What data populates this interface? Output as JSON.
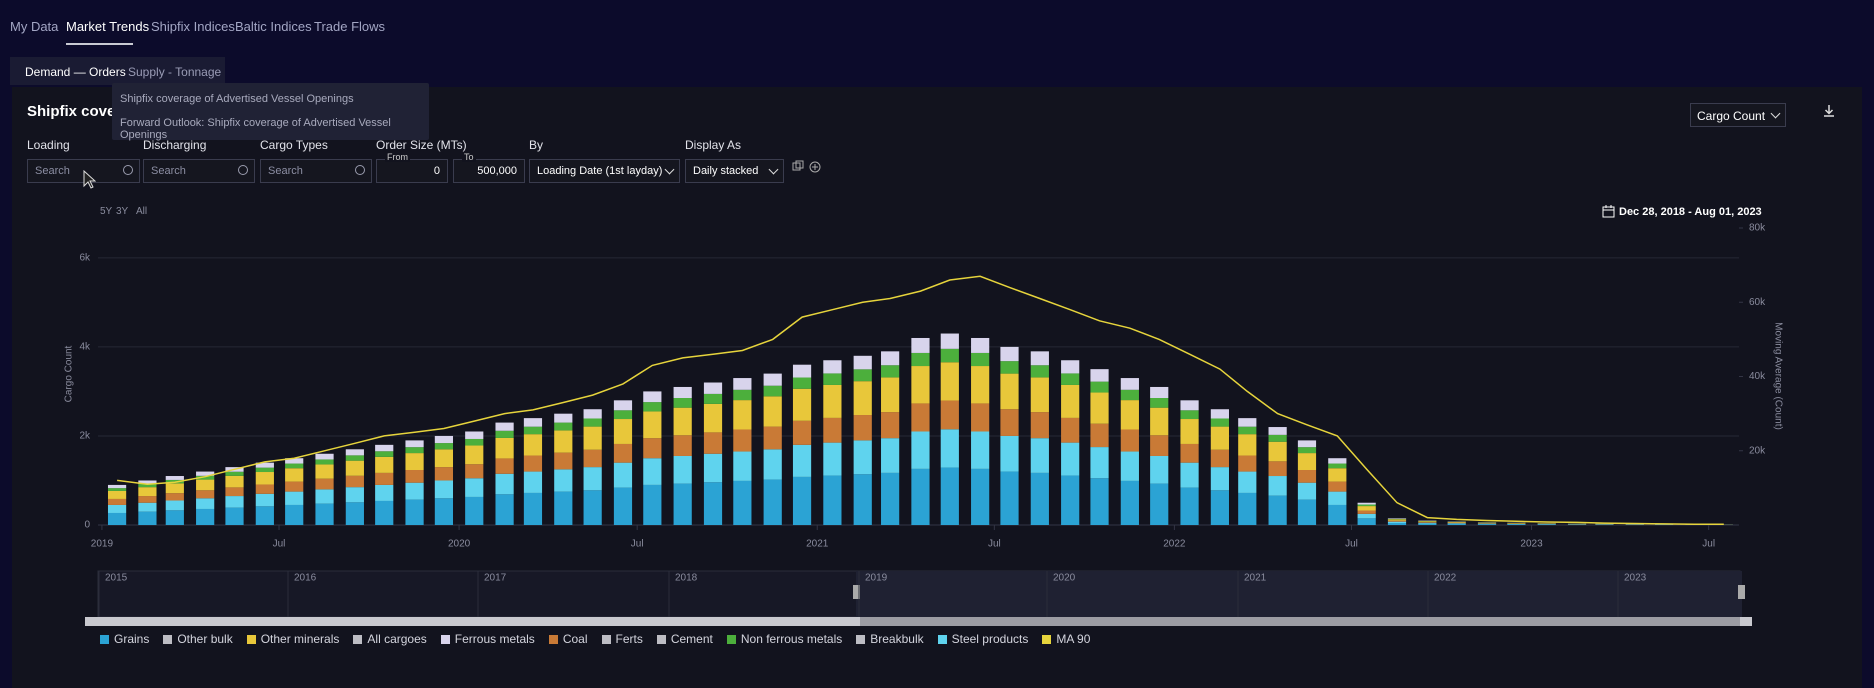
{
  "nav": [
    "My Data",
    "Market Trends",
    "Shipfix Indices",
    "Baltic Indices",
    "Trade Flows"
  ],
  "subtabs": [
    "Demand — Orders",
    "Supply - Tonnage"
  ],
  "menu": [
    "Shipfix coverage of Advertised Vessel Openings",
    "Forward Outlook: Shipfix coverage of Advertised Vessel Openings"
  ],
  "panel": {
    "title": "Shipfix cover",
    "metric": "Cargo Count"
  },
  "filters": {
    "loading": {
      "label": "Loading",
      "placeholder": "Search"
    },
    "discharging": {
      "label": "Discharging",
      "placeholder": "Search"
    },
    "cargo_types": {
      "label": "Cargo Types",
      "placeholder": "Search"
    },
    "order_size": {
      "label": "Order Size (MTs)",
      "from_label": "From",
      "from": "0",
      "to_label": "To",
      "to": "500,000"
    },
    "by": {
      "label": "By",
      "value": "Loading Date (1st layday)"
    },
    "display_as": {
      "label": "Display As",
      "value": "Daily stacked"
    }
  },
  "zoom": [
    "5Y",
    "3Y",
    "All"
  ],
  "date_range": "Dec 28, 2018 - Aug 01, 2023",
  "navigator_years": [
    "2015",
    "2016",
    "2017",
    "2018",
    "2019",
    "2020",
    "2021",
    "2022",
    "2023"
  ],
  "chart_data": {
    "type": "bar",
    "y_label": "Cargo Count",
    "y2_label": "Moving Average (Count)",
    "grid": true,
    "x": [
      "2019-01",
      "2019-02",
      "2019-03",
      "2019-04",
      "2019-05",
      "2019-06",
      "2019-07",
      "2019-08",
      "2019-09",
      "2019-10",
      "2019-11",
      "2019-12",
      "2020-01",
      "2020-02",
      "2020-03",
      "2020-04",
      "2020-05",
      "2020-06",
      "2020-07",
      "2020-08",
      "2020-09",
      "2020-10",
      "2020-11",
      "2020-12",
      "2021-01",
      "2021-02",
      "2021-03",
      "2021-04",
      "2021-05",
      "2021-06",
      "2021-07",
      "2021-08",
      "2021-09",
      "2021-10",
      "2021-11",
      "2021-12",
      "2022-01",
      "2022-02",
      "2022-03",
      "2022-04",
      "2022-05",
      "2022-06",
      "2022-07",
      "2022-08",
      "2022-09",
      "2022-10",
      "2022-11",
      "2022-12",
      "2023-01",
      "2023-02",
      "2023-03",
      "2023-04",
      "2023-05",
      "2023-06",
      "2023-07"
    ],
    "xlim": [
      "2018-12-28",
      "2023-08-01"
    ],
    "xticks": [
      {
        "value": "2019-01-01",
        "label": "2019"
      },
      {
        "value": "2019-07-01",
        "label": "Jul"
      },
      {
        "value": "2020-01-01",
        "label": "2020"
      },
      {
        "value": "2020-07-01",
        "label": "Jul"
      },
      {
        "value": "2021-01-01",
        "label": "2021"
      },
      {
        "value": "2021-07-01",
        "label": "Jul"
      },
      {
        "value": "2022-01-01",
        "label": "2022"
      },
      {
        "value": "2022-07-01",
        "label": "Jul"
      },
      {
        "value": "2023-01-01",
        "label": "2023"
      },
      {
        "value": "2023-07-01",
        "label": "Jul"
      }
    ],
    "ylim": [
      0,
      6670
    ],
    "yticks": [
      0,
      {
        "value": 2000,
        "label": "2k"
      },
      {
        "value": 4000,
        "label": "4k"
      },
      {
        "value": 6000,
        "label": "6k"
      }
    ],
    "y2lim": [
      0,
      80000
    ],
    "y2ticks": [
      {
        "value": 20000,
        "label": "20k"
      },
      {
        "value": 40000,
        "label": "40k"
      },
      {
        "value": 60000,
        "label": "60k"
      },
      {
        "value": 80000,
        "label": "80k"
      }
    ],
    "series": [
      {
        "name": "Grains",
        "color": "#2ba3d4",
        "values": [
          270,
          300,
          330,
          360,
          390,
          420,
          450,
          480,
          510,
          540,
          570,
          600,
          630,
          690,
          720,
          750,
          780,
          840,
          900,
          930,
          960,
          990,
          1020,
          1080,
          1110,
          1140,
          1170,
          1260,
          1290,
          1260,
          1200,
          1170,
          1110,
          1050,
          990,
          930,
          840,
          780,
          720,
          660,
          570,
          450,
          150,
          45,
          30,
          24,
          18,
          15,
          12,
          9,
          9,
          6,
          6,
          3,
          3
        ]
      },
      {
        "name": "Other bulk",
        "color": "#bdbdc4",
        "values": [
          0,
          0,
          0,
          0,
          0,
          0,
          0,
          0,
          0,
          0,
          0,
          0,
          0,
          0,
          0,
          0,
          0,
          0,
          0,
          0,
          0,
          0,
          0,
          0,
          0,
          0,
          0,
          0,
          0,
          0,
          0,
          0,
          0,
          0,
          0,
          0,
          0,
          0,
          0,
          0,
          0,
          0,
          0,
          0,
          0,
          0,
          0,
          0,
          0,
          0,
          0,
          0,
          0,
          0,
          0
        ]
      },
      {
        "name": "Other minerals",
        "color": "#e8c73a",
        "values": [
          180,
          200,
          220,
          240,
          260,
          280,
          300,
          320,
          340,
          360,
          380,
          400,
          420,
          460,
          480,
          500,
          520,
          560,
          600,
          620,
          640,
          660,
          680,
          720,
          740,
          760,
          780,
          840,
          860,
          840,
          800,
          780,
          740,
          700,
          660,
          620,
          560,
          520,
          480,
          440,
          380,
          300,
          100,
          30,
          20,
          16,
          12,
          10,
          8,
          6,
          6,
          4,
          4,
          2,
          2
        ]
      },
      {
        "name": "All cargoes",
        "color": "#bdbdc4",
        "values": [
          0,
          0,
          0,
          0,
          0,
          0,
          0,
          0,
          0,
          0,
          0,
          0,
          0,
          0,
          0,
          0,
          0,
          0,
          0,
          0,
          0,
          0,
          0,
          0,
          0,
          0,
          0,
          0,
          0,
          0,
          0,
          0,
          0,
          0,
          0,
          0,
          0,
          0,
          0,
          0,
          0,
          0,
          0,
          0,
          0,
          0,
          0,
          0,
          0,
          0,
          0,
          0,
          0,
          0,
          0
        ]
      },
      {
        "name": "Ferrous metals",
        "color": "#d8d4ec",
        "values": [
          72,
          80,
          88,
          96,
          104,
          112,
          120,
          128,
          136,
          144,
          152,
          160,
          168,
          184,
          192,
          200,
          208,
          224,
          240,
          248,
          256,
          264,
          272,
          288,
          296,
          304,
          312,
          336,
          344,
          336,
          320,
          312,
          296,
          280,
          264,
          248,
          224,
          208,
          192,
          176,
          152,
          120,
          40,
          12,
          8,
          6,
          5,
          4,
          3,
          2,
          2,
          2,
          2,
          1,
          1
        ]
      },
      {
        "name": "Coal",
        "color": "#c97a36",
        "values": [
          135,
          150,
          165,
          180,
          195,
          210,
          225,
          240,
          255,
          270,
          285,
          300,
          315,
          345,
          360,
          375,
          390,
          420,
          450,
          465,
          480,
          495,
          510,
          540,
          555,
          570,
          585,
          630,
          645,
          630,
          600,
          585,
          555,
          525,
          495,
          465,
          420,
          390,
          360,
          330,
          285,
          225,
          75,
          23,
          15,
          12,
          9,
          8,
          6,
          5,
          5,
          3,
          3,
          2,
          2
        ]
      },
      {
        "name": "Ferts",
        "color": "#bdbdc4",
        "values": [
          0,
          0,
          0,
          0,
          0,
          0,
          0,
          0,
          0,
          0,
          0,
          0,
          0,
          0,
          0,
          0,
          0,
          0,
          0,
          0,
          0,
          0,
          0,
          0,
          0,
          0,
          0,
          0,
          0,
          0,
          0,
          0,
          0,
          0,
          0,
          0,
          0,
          0,
          0,
          0,
          0,
          0,
          0,
          0,
          0,
          0,
          0,
          0,
          0,
          0,
          0,
          0,
          0,
          0,
          0
        ]
      },
      {
        "name": "Cement",
        "color": "#bdbdc4",
        "values": [
          0,
          0,
          0,
          0,
          0,
          0,
          0,
          0,
          0,
          0,
          0,
          0,
          0,
          0,
          0,
          0,
          0,
          0,
          0,
          0,
          0,
          0,
          0,
          0,
          0,
          0,
          0,
          0,
          0,
          0,
          0,
          0,
          0,
          0,
          0,
          0,
          0,
          0,
          0,
          0,
          0,
          0,
          0,
          0,
          0,
          0,
          0,
          0,
          0,
          0,
          0,
          0,
          0,
          0,
          0
        ]
      },
      {
        "name": "Non ferrous metals",
        "color": "#4caf3c",
        "values": [
          63,
          70,
          77,
          84,
          91,
          98,
          105,
          112,
          119,
          126,
          133,
          140,
          147,
          161,
          168,
          175,
          182,
          196,
          210,
          217,
          224,
          231,
          238,
          252,
          259,
          266,
          273,
          294,
          301,
          294,
          280,
          273,
          259,
          245,
          231,
          217,
          196,
          182,
          168,
          154,
          133,
          105,
          35,
          11,
          7,
          6,
          4,
          4,
          3,
          2,
          2,
          1,
          1,
          1,
          1
        ]
      },
      {
        "name": "Breakbulk",
        "color": "#bdbdc4",
        "values": [
          0,
          0,
          0,
          0,
          0,
          0,
          0,
          0,
          0,
          0,
          0,
          0,
          0,
          0,
          0,
          0,
          0,
          0,
          0,
          0,
          0,
          0,
          0,
          0,
          0,
          0,
          0,
          0,
          0,
          0,
          0,
          0,
          0,
          0,
          0,
          0,
          0,
          0,
          0,
          0,
          0,
          0,
          0,
          0,
          0,
          0,
          0,
          0,
          0,
          0,
          0,
          0,
          0,
          0,
          0
        ]
      },
      {
        "name": "Steel products",
        "color": "#5fd3ee",
        "values": [
          180,
          200,
          220,
          240,
          260,
          280,
          300,
          320,
          340,
          360,
          380,
          400,
          420,
          460,
          480,
          500,
          520,
          560,
          600,
          620,
          640,
          660,
          680,
          720,
          740,
          760,
          780,
          840,
          860,
          840,
          800,
          780,
          740,
          700,
          660,
          620,
          560,
          520,
          480,
          440,
          380,
          300,
          100,
          30,
          20,
          16,
          12,
          10,
          8,
          6,
          6,
          4,
          4,
          2,
          2
        ]
      },
      {
        "name": "MA 90",
        "color": "#e6d43c",
        "type": "line",
        "axis": "y2",
        "values": [
          12000,
          11000,
          11500,
          13000,
          15000,
          17000,
          18000,
          20000,
          22000,
          24000,
          25000,
          26000,
          28000,
          30000,
          31000,
          33000,
          35000,
          38000,
          43000,
          45000,
          46000,
          47000,
          50000,
          56000,
          58000,
          60000,
          61000,
          63000,
          66000,
          67000,
          64000,
          61000,
          58000,
          55000,
          53000,
          50000,
          46000,
          42000,
          36000,
          30000,
          27000,
          24000,
          15000,
          6000,
          2000,
          1500,
          1200,
          1000,
          800,
          700,
          500,
          400,
          300,
          200,
          200
        ]
      }
    ]
  }
}
